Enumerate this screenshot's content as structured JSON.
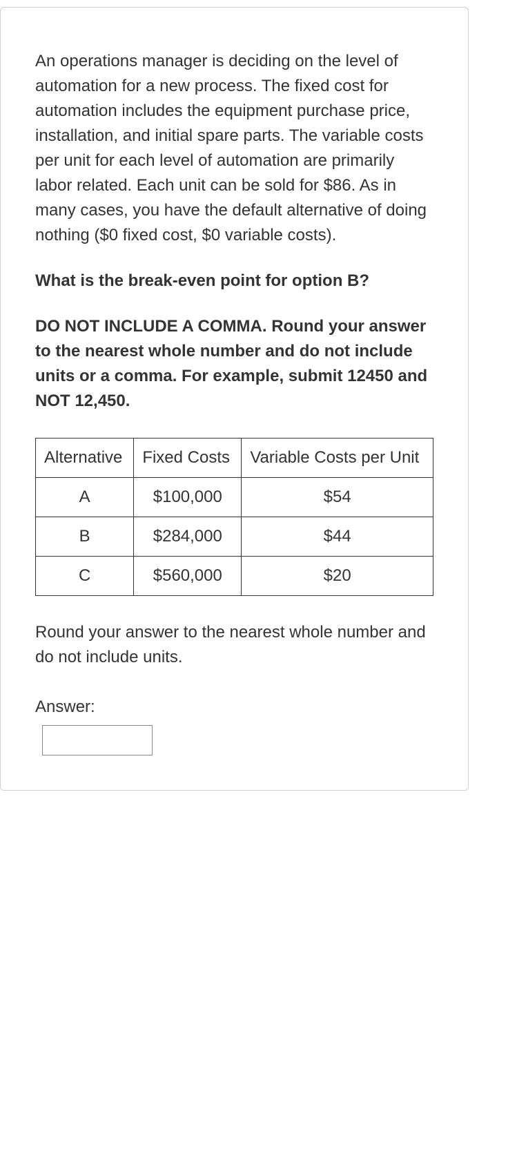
{
  "intro": "An operations manager is deciding on the level of automation for a new process.  The fixed cost for automation includes the equipment purchase price, installation, and initial spare parts.  The variable costs per unit for each level of automation are primarily labor related.  Each unit can be sold for $86.  As in many cases, you have the default alternative of doing nothing ($0 fixed cost, $0 variable costs).",
  "question": "What is the break-even point for option B?",
  "instruction": "DO NOT INCLUDE A COMMA.  Round your answer to the nearest whole number and do not include units or a comma.  For example, submit 12450 and NOT 12,450.",
  "table": {
    "headers": {
      "col1": "Alternative",
      "col2": "Fixed Costs",
      "col3": "Variable Costs per Unit"
    },
    "rows": [
      {
        "alt": "A",
        "fixed": "$100,000",
        "variable": "$54"
      },
      {
        "alt": "B",
        "fixed": "$284,000",
        "variable": "$44"
      },
      {
        "alt": "C",
        "fixed": "$560,000",
        "variable": "$20"
      }
    ]
  },
  "footer": "Round your answer to the nearest whole number and do not include units.",
  "answer_label": "Answer:",
  "answer_value": "",
  "colors": {
    "text": "#333333",
    "border": "#d0d0d0",
    "table_border": "#333333",
    "background": "#ffffff",
    "input_border": "#888888"
  }
}
